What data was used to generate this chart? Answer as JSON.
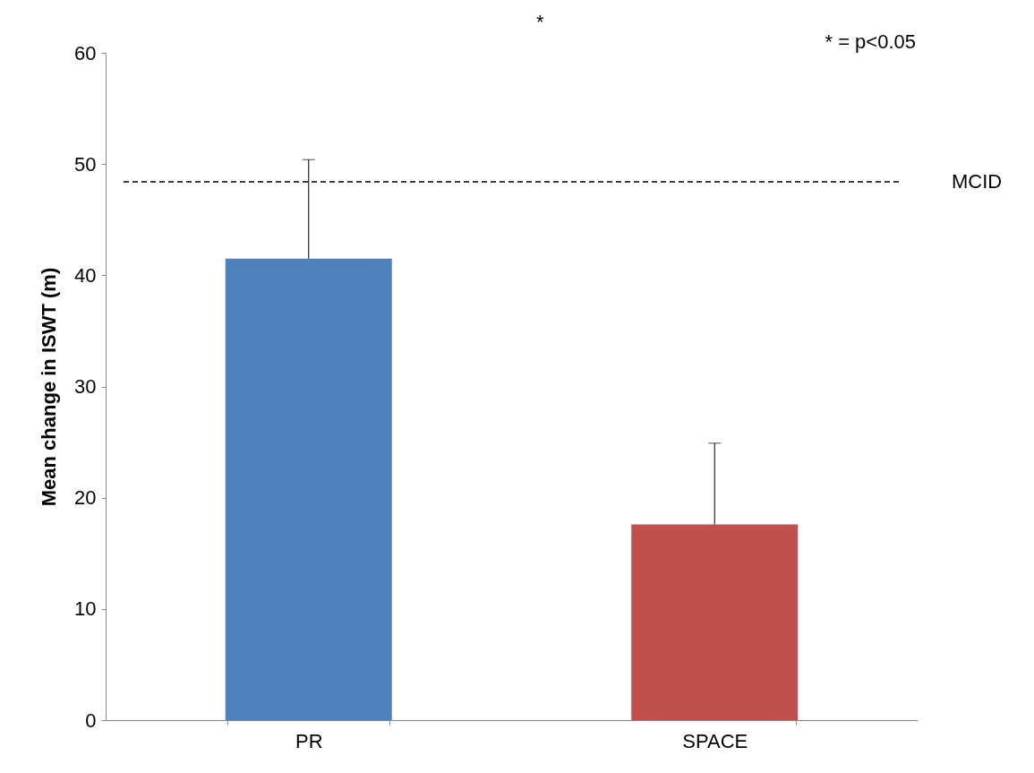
{
  "chart_data": {
    "type": "bar",
    "ylabel": "Mean change in ISWT (m)",
    "categories": [
      "PR",
      "SPACE"
    ],
    "values": [
      41.5,
      17.6
    ],
    "colors": [
      "#4f81bd",
      "#c0504d"
    ],
    "errors": [
      [
        41.5,
        50.4
      ],
      [
        17.6,
        24.9
      ]
    ],
    "ylim": [
      0,
      60
    ],
    "yticks": [
      0,
      10,
      20,
      30,
      40,
      50,
      60
    ],
    "grid": false,
    "ref_lines": [
      {
        "axis": "y",
        "value": 48.4,
        "label": "MCID",
        "color": "#000000",
        "line_style": "dashed"
      }
    ],
    "annotations": [
      "*",
      "* = p<0.05"
    ]
  }
}
